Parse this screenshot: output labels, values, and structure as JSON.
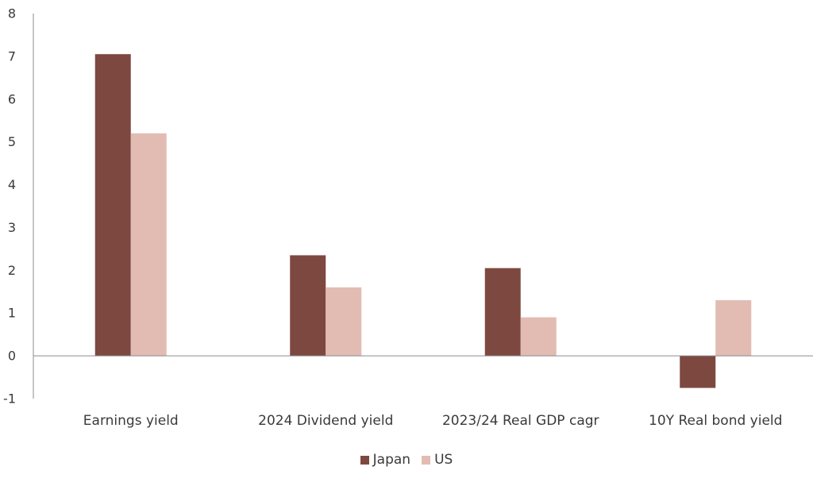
{
  "chart_data": {
    "type": "bar",
    "categories": [
      "Earnings yield",
      "2024 Dividend yield",
      "2023/24 Real GDP cagr",
      "10Y Real bond yield"
    ],
    "series": [
      {
        "name": "Japan",
        "values": [
          7.05,
          2.35,
          2.05,
          -0.75
        ],
        "color": "#7d4840"
      },
      {
        "name": "US",
        "values": [
          5.2,
          1.6,
          0.9,
          1.3
        ],
        "color": "#e2bcb2"
      }
    ],
    "ylim": [
      -1,
      8
    ],
    "yticks": [
      "-1",
      "0",
      "1",
      "2",
      "3",
      "4",
      "5",
      "6",
      "7",
      "8"
    ],
    "grid": false,
    "legend": "bottom",
    "axis_color": "#8c8c8c"
  }
}
